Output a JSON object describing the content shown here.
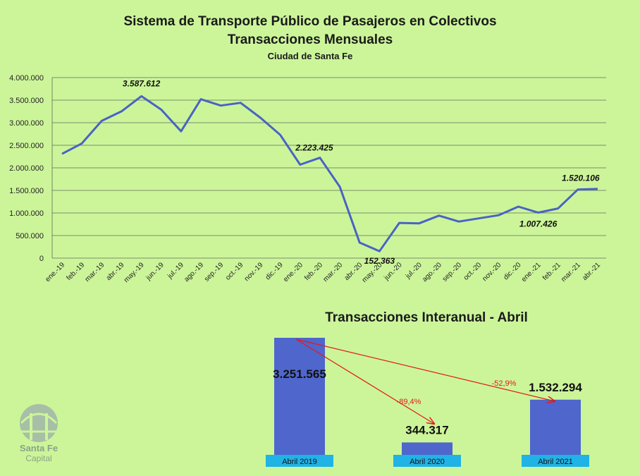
{
  "header": {
    "title_line1": "Sistema de Transporte Público de Pasajeros en Colectivos",
    "title_line2": "Transacciones Mensuales",
    "subtitle": "Ciudad de Santa Fe"
  },
  "logo": {
    "line1": "Santa Fe",
    "line2": "Capital"
  },
  "colors": {
    "background": "#ccf59a",
    "line": "#4a63c4",
    "bar": "#4f66cc",
    "bar_label_bg": "#1fb3e6",
    "arrow": "#e31a1a"
  },
  "chart_data": [
    {
      "type": "line",
      "title": "Sistema de Transporte Público de Pasajeros en Colectivos",
      "ylim": [
        0,
        4000000
      ],
      "grid": true,
      "y_ticks": [
        "0",
        "500.000",
        "1.000.000",
        "1.500.000",
        "2.000.000",
        "2.500.000",
        "3.000.000",
        "3.500.000",
        "4.000.000"
      ],
      "categories": [
        "ene.-19",
        "feb.-19",
        "mar.-19",
        "abr.-19",
        "may.-19",
        "jun.-19",
        "jul.-19",
        "ago.-19",
        "sep.-19",
        "oct.-19",
        "nov.-19",
        "dic.-19",
        "ene.-20",
        "feb.-20",
        "mar.-20",
        "abr.-20",
        "may.-20",
        "jun.-20",
        "jul.-20",
        "ago.-20",
        "sep.-20",
        "oct.-20",
        "nov.-20",
        "dic.-20",
        "ene.-21",
        "feb.-21",
        "mar.-21",
        "abr.-21"
      ],
      "values": [
        2310000,
        2540000,
        3040000,
        3251565,
        3587612,
        3290000,
        2810000,
        3520000,
        3380000,
        3440000,
        3110000,
        2730000,
        2070000,
        2223425,
        1580000,
        344317,
        152363,
        780000,
        770000,
        940000,
        810000,
        880000,
        950000,
        1140000,
        1007426,
        1100000,
        1520106,
        1532294
      ],
      "annotations": [
        {
          "index": 4,
          "text": "3.587.612"
        },
        {
          "index": 13,
          "text": "2.223.425"
        },
        {
          "index": 16,
          "text": "152.363"
        },
        {
          "index": 24,
          "text": "1.007.426"
        },
        {
          "index": 26,
          "text": "1.520.106"
        }
      ]
    },
    {
      "type": "bar",
      "title": "Transacciones Interanual - Abril",
      "categories": [
        "Abril 2019",
        "Abril 2020",
        "Abril 2021"
      ],
      "values": [
        3251565,
        344317,
        1532294
      ],
      "value_labels": [
        "3.251.565",
        "344.317",
        "1.532.294"
      ],
      "ylim": [
        0,
        3251565
      ],
      "changes": [
        {
          "from": "Abril 2019",
          "to": "Abril 2020",
          "label": "-89,4%"
        },
        {
          "from": "Abril 2019",
          "to": "Abril 2021",
          "label": "-52,9%"
        }
      ]
    }
  ]
}
